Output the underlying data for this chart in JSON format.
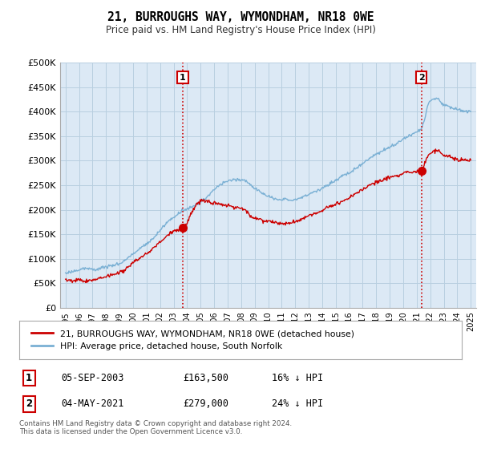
{
  "title": "21, BURROUGHS WAY, WYMONDHAM, NR18 0WE",
  "subtitle": "Price paid vs. HM Land Registry's House Price Index (HPI)",
  "ylabel_ticks": [
    "£0",
    "£50K",
    "£100K",
    "£150K",
    "£200K",
    "£250K",
    "£300K",
    "£350K",
    "£400K",
    "£450K",
    "£500K"
  ],
  "ytick_vals": [
    0,
    50000,
    100000,
    150000,
    200000,
    250000,
    300000,
    350000,
    400000,
    450000,
    500000
  ],
  "ylim": [
    0,
    500000
  ],
  "sale1_date": 2003.68,
  "sale1_price": 163500,
  "sale2_date": 2021.35,
  "sale2_price": 279000,
  "vline_color": "#cc0000",
  "hpi_color": "#7ab0d4",
  "sale_color": "#cc0000",
  "plot_bg_color": "#dce9f5",
  "legend_label_sale": "21, BURROUGHS WAY, WYMONDHAM, NR18 0WE (detached house)",
  "legend_label_hpi": "HPI: Average price, detached house, South Norfolk",
  "footer": "Contains HM Land Registry data © Crown copyright and database right 2024.\nThis data is licensed under the Open Government Licence v3.0.",
  "table_rows": [
    [
      "1",
      "05-SEP-2003",
      "£163,500",
      "16% ↓ HPI"
    ],
    [
      "2",
      "04-MAY-2021",
      "£279,000",
      "24% ↓ HPI"
    ]
  ],
  "background_color": "#ffffff",
  "grid_color": "#b8cfe0"
}
